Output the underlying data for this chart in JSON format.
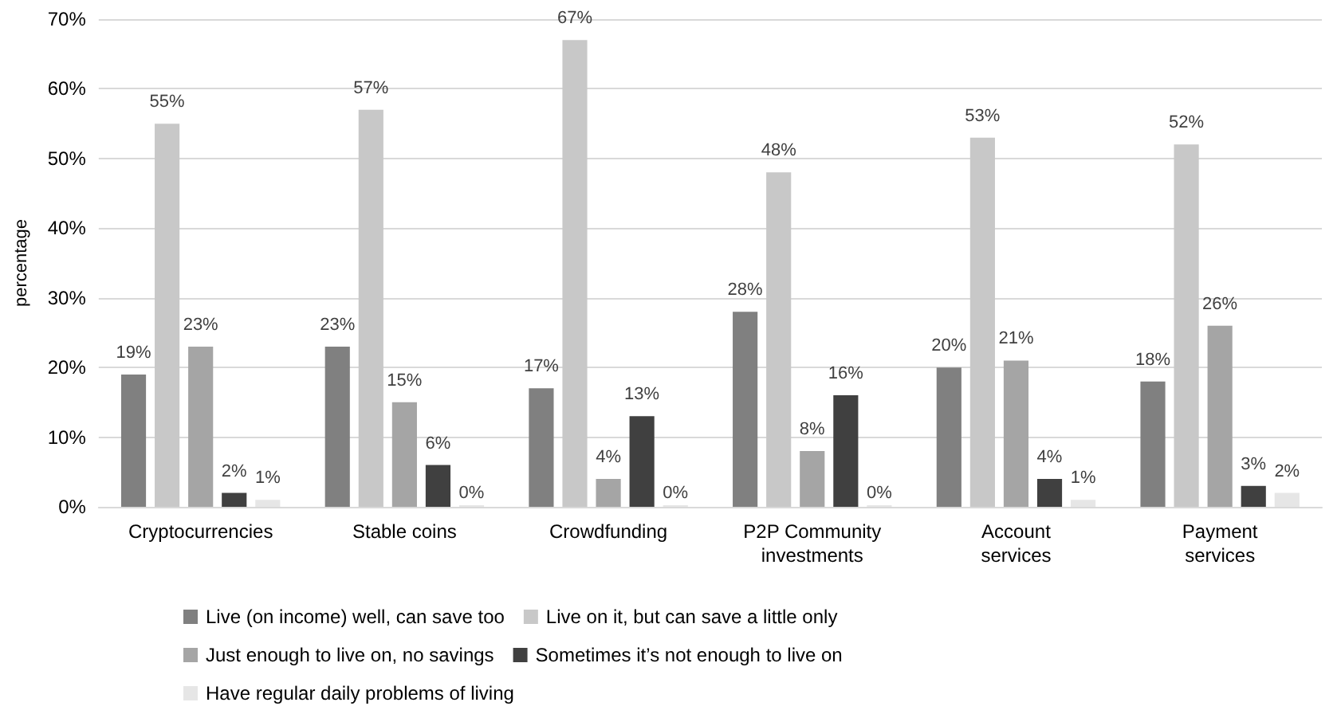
{
  "chart_data": {
    "type": "bar",
    "ylabel": "percentage",
    "categories": [
      "Cryptocurrencies",
      "Stable coins",
      "Crowdfunding",
      "P2P Community\ninvestments",
      "Account\nservices",
      "Payment\nservices"
    ],
    "series": [
      {
        "name": "Live (on income) well, can save too",
        "color": "#808080",
        "values": [
          19,
          23,
          17,
          28,
          20,
          18
        ],
        "value_labels": [
          "19%",
          "23%",
          "17%",
          "28%",
          "20%",
          "18%"
        ]
      },
      {
        "name": "Live on it, but can save a little only",
        "color": "#c8c8c8",
        "values": [
          55,
          57,
          67,
          48,
          53,
          52
        ],
        "value_labels": [
          "55%",
          "57%",
          "67%",
          "48%",
          "53%",
          "52%"
        ]
      },
      {
        "name": "Just enough to live on, no savings",
        "color": "#a5a5a5",
        "values": [
          23,
          15,
          4,
          8,
          21,
          26
        ],
        "value_labels": [
          "23%",
          "15%",
          "4%",
          "8%",
          "21%",
          "26%"
        ]
      },
      {
        "name": "Sometimes it’s not enough to live on",
        "color": "#404040",
        "values": [
          2,
          6,
          13,
          16,
          4,
          3
        ],
        "value_labels": [
          "2%",
          "6%",
          "13%",
          "16%",
          "4%",
          "3%"
        ]
      },
      {
        "name": "Have regular daily problems of living",
        "color": "#e6e6e6",
        "values": [
          1,
          0,
          0,
          0,
          1,
          2
        ],
        "value_labels": [
          "1%",
          "0%",
          "0%",
          "0%",
          "1%",
          "2%"
        ]
      }
    ],
    "ylim": [
      0,
      70
    ],
    "yticks": [
      {
        "value": 0,
        "label": "0%"
      },
      {
        "value": 10,
        "label": "10%"
      },
      {
        "value": 20,
        "label": "20%"
      },
      {
        "value": 30,
        "label": "30%"
      },
      {
        "value": 40,
        "label": "40%"
      },
      {
        "value": 50,
        "label": "50%"
      },
      {
        "value": 60,
        "label": "60%"
      },
      {
        "value": 70,
        "label": "70%"
      }
    ],
    "grid": "y",
    "legend": "bottom"
  }
}
